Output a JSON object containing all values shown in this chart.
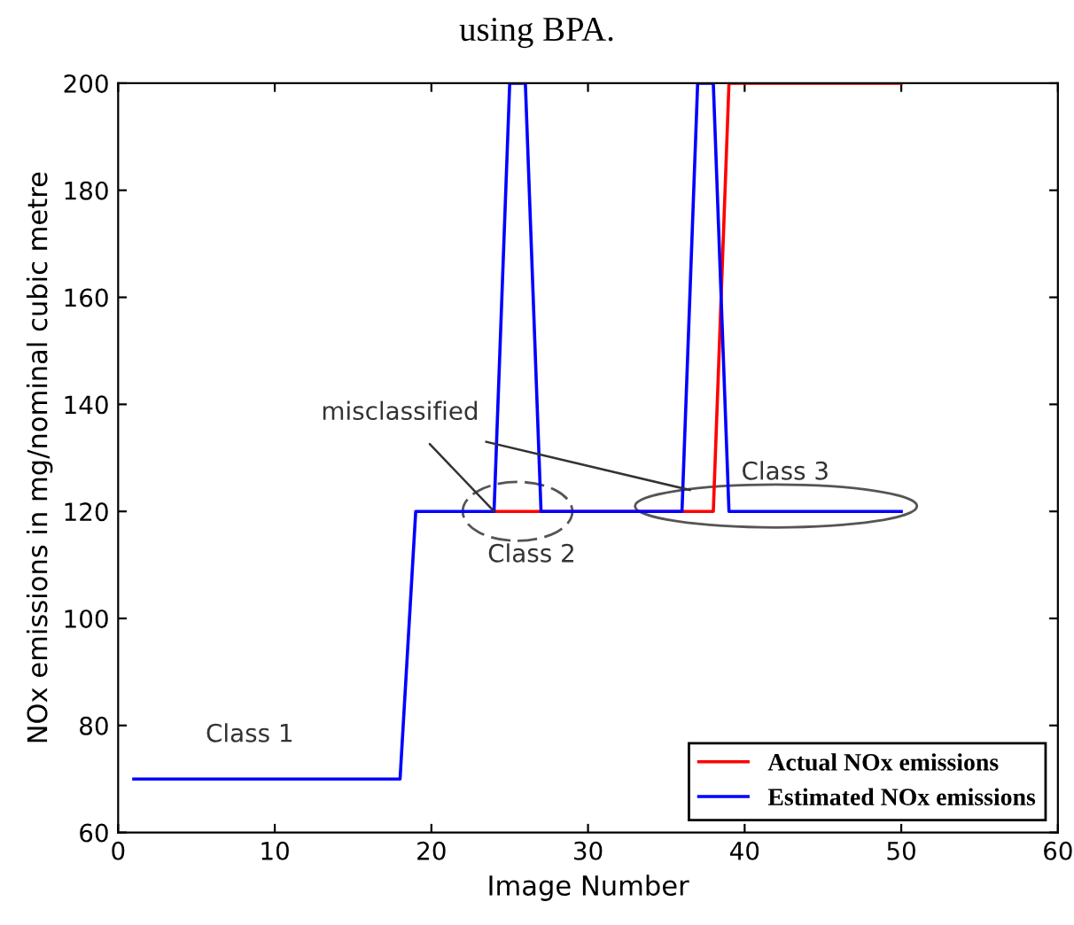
{
  "chart_data": {
    "type": "line",
    "title": "using BPA.",
    "xlabel": "Image Number",
    "ylabel": "NOx emissions in mg/nominal cubic metre",
    "xlim": [
      0,
      60
    ],
    "ylim": [
      60,
      200
    ],
    "xticks": [
      0,
      10,
      20,
      30,
      40,
      50,
      60
    ],
    "yticks": [
      60,
      80,
      100,
      120,
      140,
      160,
      180,
      200
    ],
    "grid": false,
    "legend": "bottom right",
    "line_style": "solid",
    "marker": "none",
    "series": [
      {
        "name": "Actual NOx emissions",
        "color": "#ff0000",
        "x": [
          24,
          38,
          39,
          50
        ],
        "values": [
          120,
          120,
          200,
          200
        ]
      },
      {
        "name": "Estimated NOx emissions",
        "color": "#0000ff",
        "x": [
          1,
          18,
          19,
          24,
          25,
          26,
          27,
          36,
          37,
          38,
          39,
          50
        ],
        "values": [
          70,
          70,
          120,
          120,
          200,
          200,
          120,
          120,
          200,
          200,
          120,
          120
        ]
      }
    ],
    "annotations": [
      "Class 1",
      "Class 2",
      "Class 3",
      {
        "text": "misclassified",
        "x": 24,
        "y": 120
      }
    ]
  }
}
